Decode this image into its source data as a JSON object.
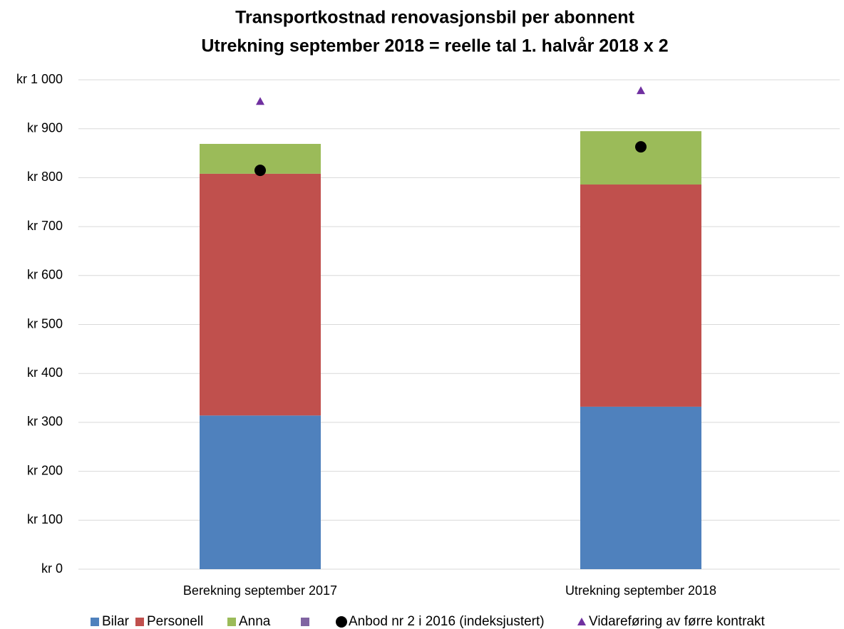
{
  "chart_data": {
    "type": "bar",
    "stacked": true,
    "title": "Transportkostnad renovasjonsbil per abonnent",
    "subtitle": "Utrekning september 2018 = reelle tal 1. halvår 2018 x 2",
    "categories": [
      "Berekning september 2017",
      "Utrekning september 2018"
    ],
    "series": [
      {
        "name": "Bilar",
        "type": "bar",
        "color": "#4f81bd",
        "values": [
          314,
          332
        ]
      },
      {
        "name": "Personell",
        "type": "bar",
        "color": "#c0504d",
        "values": [
          494,
          454
        ]
      },
      {
        "name": "Anna",
        "type": "bar",
        "color": "#9bbb59",
        "values": [
          61,
          109
        ]
      },
      {
        "name": null,
        "type": "bar",
        "color": "#8064a2",
        "values": [
          null,
          null
        ]
      },
      {
        "name": "Anbod nr 2 i 2016 (indeksjustert)",
        "type": "scatter",
        "marker": "circle",
        "color": "#000000",
        "values": [
          815,
          863
        ]
      },
      {
        "name": "Vidareføring av førre kontrakt",
        "type": "scatter",
        "marker": "triangle",
        "color": "#7030a0",
        "values": [
          956,
          978
        ]
      }
    ],
    "ylim": [
      0,
      1000
    ],
    "yticks": [
      {
        "value": 0,
        "label": "kr 0"
      },
      {
        "value": 100,
        "label": "kr 100"
      },
      {
        "value": 200,
        "label": "kr 200"
      },
      {
        "value": 300,
        "label": "kr 300"
      },
      {
        "value": 400,
        "label": "kr 400"
      },
      {
        "value": 500,
        "label": "kr 500"
      },
      {
        "value": 600,
        "label": "kr 600"
      },
      {
        "value": 700,
        "label": "kr 700"
      },
      {
        "value": 800,
        "label": "kr 800"
      },
      {
        "value": 900,
        "label": "kr 900"
      },
      {
        "value": 1000,
        "label": "kr 1 000"
      }
    ],
    "grid": true,
    "legend": "bottom"
  }
}
